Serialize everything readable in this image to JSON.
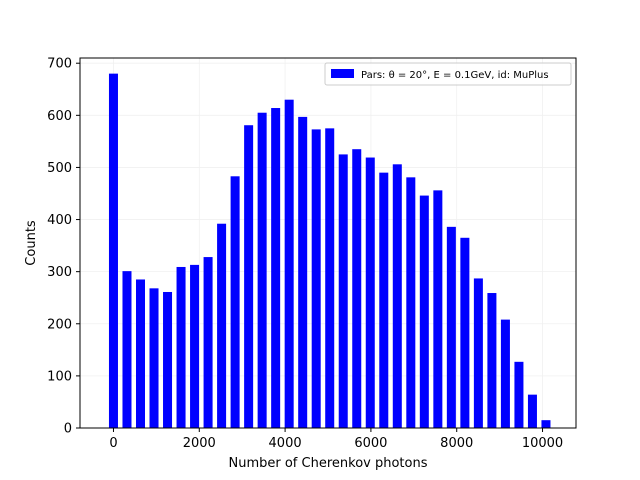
{
  "chart_data": {
    "type": "bar",
    "xlabel": "Number of Cherenkov photons",
    "ylabel": "Counts",
    "xlim": [
      -780,
      10780
    ],
    "ylim": [
      0,
      710
    ],
    "grid": true,
    "legend_placement": "top-right",
    "bar_color": "#0000ff",
    "bar_width": 210,
    "x_ticks": [
      0,
      2000,
      4000,
      6000,
      8000,
      10000
    ],
    "y_ticks": [
      0,
      100,
      200,
      300,
      400,
      500,
      600,
      700
    ],
    "series": [
      {
        "name": "Pars: θ = 20°, E = 0.1GeV, id: MuPlus",
        "x": [
          0,
          315,
          630,
          945,
          1260,
          1575,
          1890,
          2205,
          2520,
          2835,
          3150,
          3465,
          3780,
          4095,
          4410,
          4725,
          5040,
          5355,
          5670,
          5985,
          6300,
          6615,
          6930,
          7245,
          7560,
          7875,
          8190,
          8505,
          8820,
          9135,
          9450,
          9765,
          10080
        ],
        "values": [
          680,
          301,
          285,
          268,
          261,
          309,
          313,
          328,
          392,
          483,
          581,
          605,
          614,
          630,
          597,
          573,
          575,
          525,
          535,
          519,
          490,
          506,
          481,
          446,
          456,
          386,
          365,
          287,
          259,
          208,
          127,
          64,
          15
        ]
      }
    ]
  }
}
